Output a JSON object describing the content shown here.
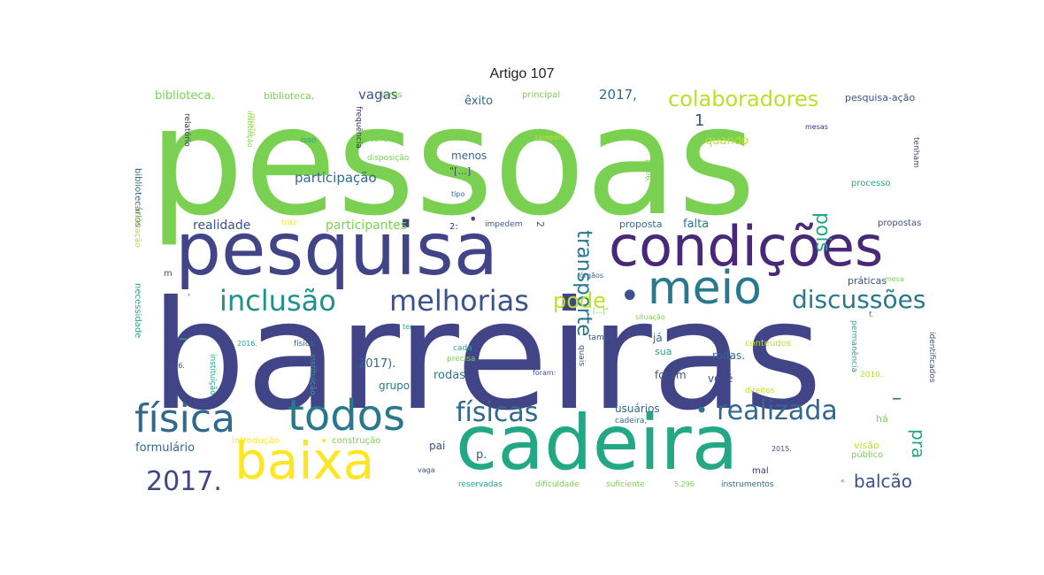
{
  "title": "Artigo 107",
  "words": [
    {
      "text": "pessoas",
      "color": "#7ad151"
    },
    {
      "text": "barreiras",
      "color": "#414487"
    },
    {
      "text": "pesquisa",
      "color": "#414487"
    },
    {
      "text": "condições",
      "color": "#482878"
    },
    {
      "text": "cadeira",
      "color": "#22a884"
    },
    {
      "text": "meio",
      "color": "#2a788e"
    },
    {
      "text": "baixa",
      "color": "#fde725"
    },
    {
      "text": "todos",
      "color": "#2a788e"
    },
    {
      "text": "física",
      "color": "#31688e"
    },
    {
      "text": "inclusão",
      "color": "#21918c"
    },
    {
      "text": "melhorias",
      "color": "#3b528b"
    },
    {
      "text": "físicas",
      "color": "#31688e"
    },
    {
      "text": "realizada",
      "color": "#31688e"
    },
    {
      "text": "discussões",
      "color": "#2a788e"
    },
    {
      "text": "colaboradores",
      "color": "#bddf26"
    },
    {
      "text": "transporte",
      "color": "#2a788e"
    },
    {
      "text": "2017.",
      "color": "#414487"
    },
    {
      "text": "pois",
      "color": "#22a884"
    },
    {
      "text": "pode",
      "color": "#bddf26"
    },
    {
      "text": "balcão",
      "color": "#3b528b"
    },
    {
      "text": "pra",
      "color": "#22a884"
    },
    {
      "text": "participação",
      "color": "#31688e"
    },
    {
      "text": "participantes",
      "color": "#7ad151"
    },
    {
      "text": "realidade",
      "color": "#3b528b"
    },
    {
      "text": "vagas",
      "color": "#3b528b"
    },
    {
      "text": "2017,",
      "color": "#31688e"
    },
    {
      "text": "biblioteca.",
      "color": "#7ad151"
    },
    {
      "text": "biblioteca,",
      "color": "#7ad151"
    },
    {
      "text": "livros",
      "color": "#7ad151"
    },
    {
      "text": "êxito",
      "color": "#31688e"
    },
    {
      "text": "principal",
      "color": "#7ad151"
    },
    {
      "text": "pesquisa-ação",
      "color": "#3b528b"
    },
    {
      "text": "2017).",
      "color": "#31688e"
    },
    {
      "text": "rodas",
      "color": "#2a788e"
    },
    {
      "text": "rodas.",
      "color": "#31688e"
    },
    {
      "text": "grupo",
      "color": "#2a788e"
    },
    {
      "text": "usuários",
      "color": "#31688e"
    },
    {
      "text": "formulário",
      "color": "#31688e"
    },
    {
      "text": "falta",
      "color": "#2a788e"
    },
    {
      "text": "proposta",
      "color": "#31688e"
    },
    {
      "text": "propostas",
      "color": "#3b528b"
    },
    {
      "text": "práticas",
      "color": "#3b528b"
    },
    {
      "text": "quando",
      "color": "#bddf26"
    },
    {
      "text": "menos",
      "color": "#31688e"
    },
    {
      "text": "foram",
      "color": "#3b528b"
    },
    {
      "text": "você",
      "color": "#3b528b"
    },
    {
      "text": "visão",
      "color": "#bddf26"
    },
    {
      "text": "público",
      "color": "#7ad151"
    },
    {
      "text": "pai",
      "color": "#3b528b"
    },
    {
      "text": "p.",
      "color": "#3b528b"
    },
    {
      "text": "já",
      "color": "#31688e"
    },
    {
      "text": "sua",
      "color": "#22a884"
    },
    {
      "text": "há",
      "color": "#7ad151"
    },
    {
      "text": "bibliotecários",
      "color": "#31688e"
    },
    {
      "text": "necessidade",
      "color": "#22a884"
    },
    {
      "text": "sinalização",
      "color": "#bddf26"
    },
    {
      "text": "relatório",
      "color": "#482878"
    },
    {
      "text": "instituição",
      "color": "#7ad151"
    },
    {
      "text": "instituição.",
      "color": "#22a884"
    },
    {
      "text": "instituição,",
      "color": "#22a884"
    },
    {
      "text": "frequência",
      "color": "#482878"
    },
    {
      "text": "muito",
      "color": "#bddf26"
    },
    {
      "text": "isso",
      "color": "#22a884"
    },
    {
      "text": "gestores",
      "color": "#7ad151"
    },
    {
      "text": "também",
      "color": "#bddf26"
    },
    {
      "text": "mesas",
      "color": "#482878"
    },
    {
      "text": "tenham",
      "color": "#414487"
    },
    {
      "text": "processo",
      "color": "#22a884"
    },
    {
      "text": "(2006,",
      "color": "#7ad151"
    },
    {
      "text": "tipo",
      "color": "#31688e"
    },
    {
      "text": "\"[...]",
      "color": "#414487"
    },
    {
      "text": "[...]\"",
      "color": "#7ad151"
    },
    {
      "text": "impedem",
      "color": "#3b528b"
    },
    {
      "text": "2:",
      "color": "#482878"
    },
    {
      "text": "2",
      "color": "#3b528b"
    },
    {
      "text": "3",
      "color": "#7ad151"
    },
    {
      "text": "1",
      "color": "#3b528b"
    },
    {
      "text": "foi",
      "color": "#7ad151"
    },
    {
      "text": "traz",
      "color": "#fde725"
    },
    {
      "text": "carro",
      "color": "#7ad151"
    },
    {
      "text": "disposição",
      "color": "#7ad151"
    },
    {
      "text": "órgãos",
      "color": "#31688e"
    },
    {
      "text": "mesa",
      "color": "#7ad151"
    },
    {
      "text": "situação",
      "color": "#7ad151"
    },
    {
      "text": "f.",
      "color": "#31688e"
    },
    {
      "text": "ter",
      "color": "#22a884"
    },
    {
      "text": "2016.",
      "color": "#22a884"
    },
    {
      "text": "2006.",
      "color": "#3b528b"
    },
    {
      "text": "física.",
      "color": "#31688e"
    },
    {
      "text": "cada",
      "color": "#22a884"
    },
    {
      "text": "precisa",
      "color": "#7ad151"
    },
    {
      "text": "quais",
      "color": "#3b528b"
    },
    {
      "text": "tampo",
      "color": "#3b528b"
    },
    {
      "text": "conteúdos",
      "color": "#bddf26"
    },
    {
      "text": "foram:",
      "color": "#3b528b"
    },
    {
      "text": "permanência",
      "color": "#22a884"
    },
    {
      "text": "identificados",
      "color": "#3b528b"
    },
    {
      "text": "2010.",
      "color": "#bddf26"
    },
    {
      "text": "direitos",
      "color": "#bddf26"
    },
    {
      "text": "cadeira,",
      "color": "#31688e"
    },
    {
      "text": "introdução",
      "color": "#fde725"
    },
    {
      "text": "construção",
      "color": "#7ad151"
    },
    {
      "text": "2015.",
      "color": "#3b528b"
    },
    {
      "text": "mal",
      "color": "#482878"
    },
    {
      "text": "vaga",
      "color": "#3b528b"
    },
    {
      "text": "reservadas",
      "color": "#22a884"
    },
    {
      "text": "dificuldade",
      "color": "#7ad151"
    },
    {
      "text": "suficiente",
      "color": "#7ad151"
    },
    {
      "text": "5.296",
      "color": "#7ad151"
    },
    {
      "text": "instrumentos",
      "color": "#31688e"
    },
    {
      "text": "m",
      "color": "#3b528b"
    },
    {
      "text": "•",
      "color": "#414487"
    },
    {
      "text": "–",
      "color": "#31688e"
    },
    {
      "text": "•",
      "color": "#3b528b"
    },
    {
      "text": "•",
      "color": "#2a788e"
    },
    {
      "text": "•",
      "color": "#fde725"
    },
    {
      "text": "–",
      "color": "#22a884"
    },
    {
      "text": "'",
      "color": "#31688e"
    },
    {
      "text": "«",
      "color": "#22a884"
    }
  ]
}
